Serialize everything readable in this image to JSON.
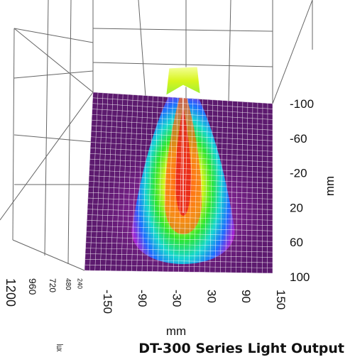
{
  "chart_data": {
    "type": "heatmap",
    "title": "DT-300 Series Light Output",
    "x_axis": {
      "label": "mm",
      "ticks": [
        -150,
        -90,
        -30,
        30,
        90,
        150
      ],
      "range": [
        -150,
        150
      ]
    },
    "y_axis": {
      "label": "mm",
      "ticks": [
        -100,
        -60,
        -20,
        20,
        60,
        100
      ],
      "range": [
        -100,
        100
      ]
    },
    "z_axis": {
      "label": "lux",
      "ticks": [
        1200,
        960,
        720,
        480,
        240
      ]
    },
    "surface": {
      "peak_location_mm": {
        "x": 0,
        "y": 25
      },
      "grid": "on",
      "colormap": [
        "#6a1b78",
        "#c21ad6",
        "#1e6cff",
        "#16d6d0",
        "#2fe62f",
        "#d8f51c",
        "#ff9a1a",
        "#e8221a",
        "#ffffff"
      ]
    }
  }
}
